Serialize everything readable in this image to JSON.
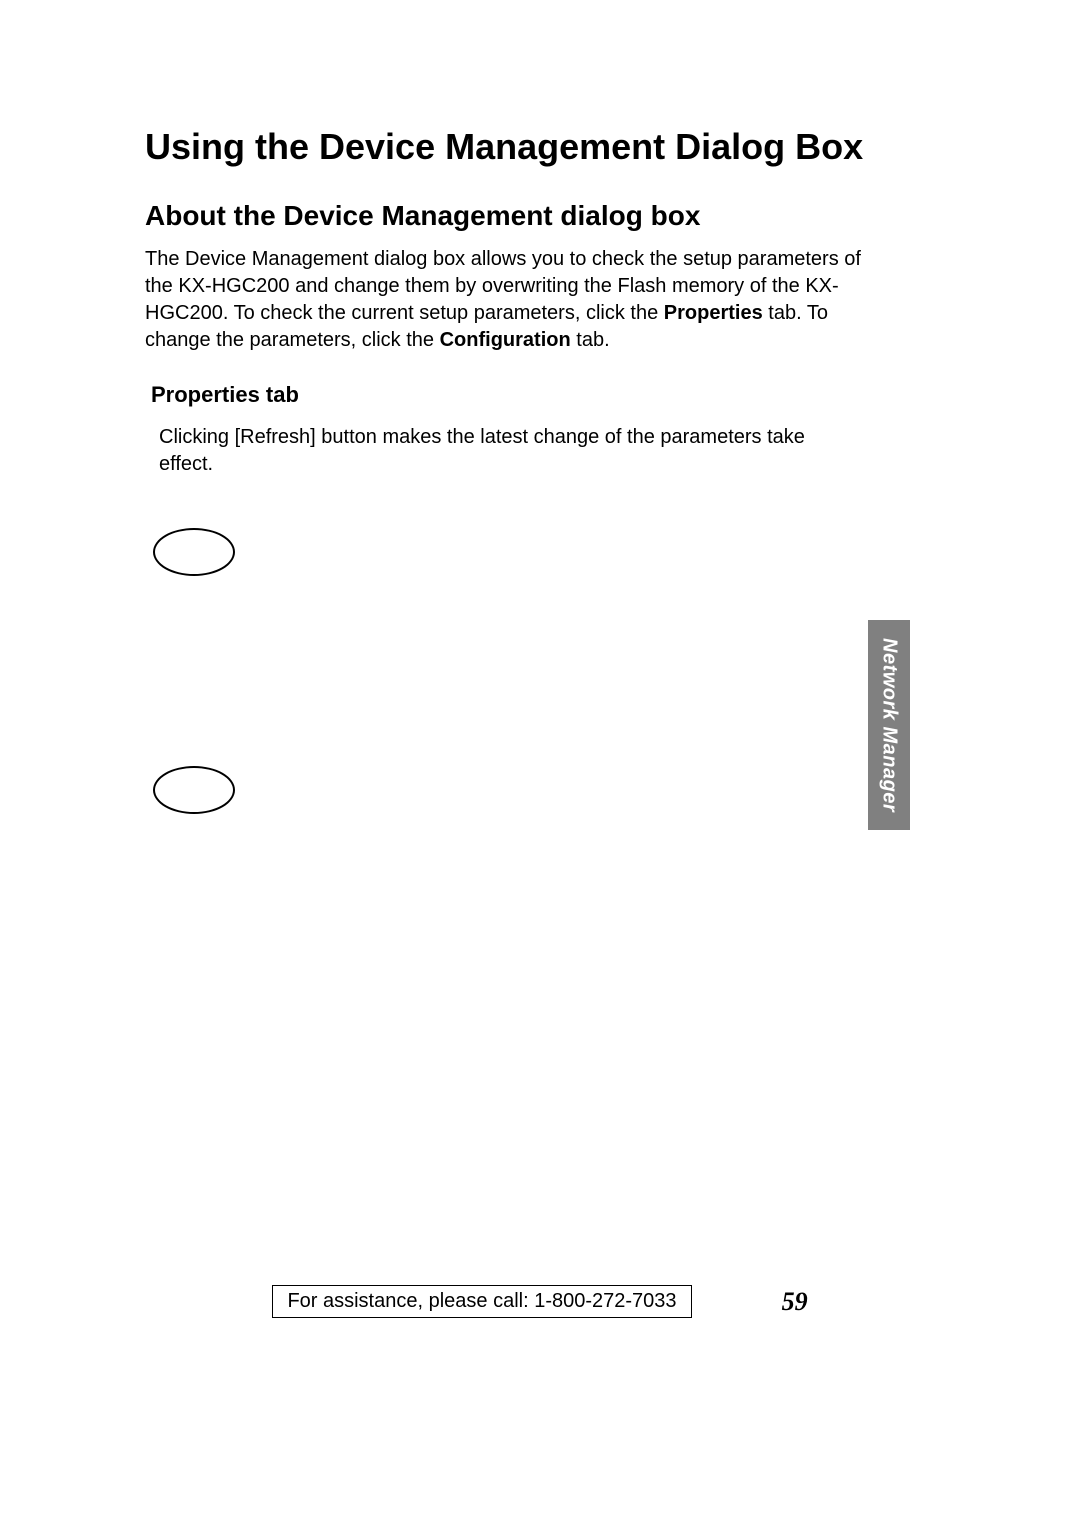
{
  "heading": "Using the Device Management Dialog Box",
  "subheading": "About the Device Management dialog box",
  "paragraph_parts": {
    "p1": "The Device Management dialog box allows you to check the setup parameters of the KX-HGC200 and change them by overwriting the Flash memory of the KX-HGC200. To check the current setup parameters, click the ",
    "p1_bold1": "Properties",
    "p1_mid": " tab. To change the parameters, click the ",
    "p1_bold2": "Configuration",
    "p1_end": " tab."
  },
  "section_heading": "Properties tab",
  "indented_parts": {
    "pre": "Clicking ",
    "btn": "[Refresh]",
    "post": " button makes the latest change of the parameters take effect."
  },
  "side_tab": "Network Manager",
  "footer_assist": "For assistance, please call: 1-800-272-7033",
  "page_number": "59",
  "colors": {
    "side_tab_bg": "#808080",
    "side_tab_text": "#ffffff",
    "text": "#000000",
    "background": "#ffffff"
  },
  "typography": {
    "heading_fontsize": 36,
    "subheading_fontsize": 28,
    "body_fontsize": 20,
    "section_heading_fontsize": 22,
    "page_number_fontsize": 26
  }
}
